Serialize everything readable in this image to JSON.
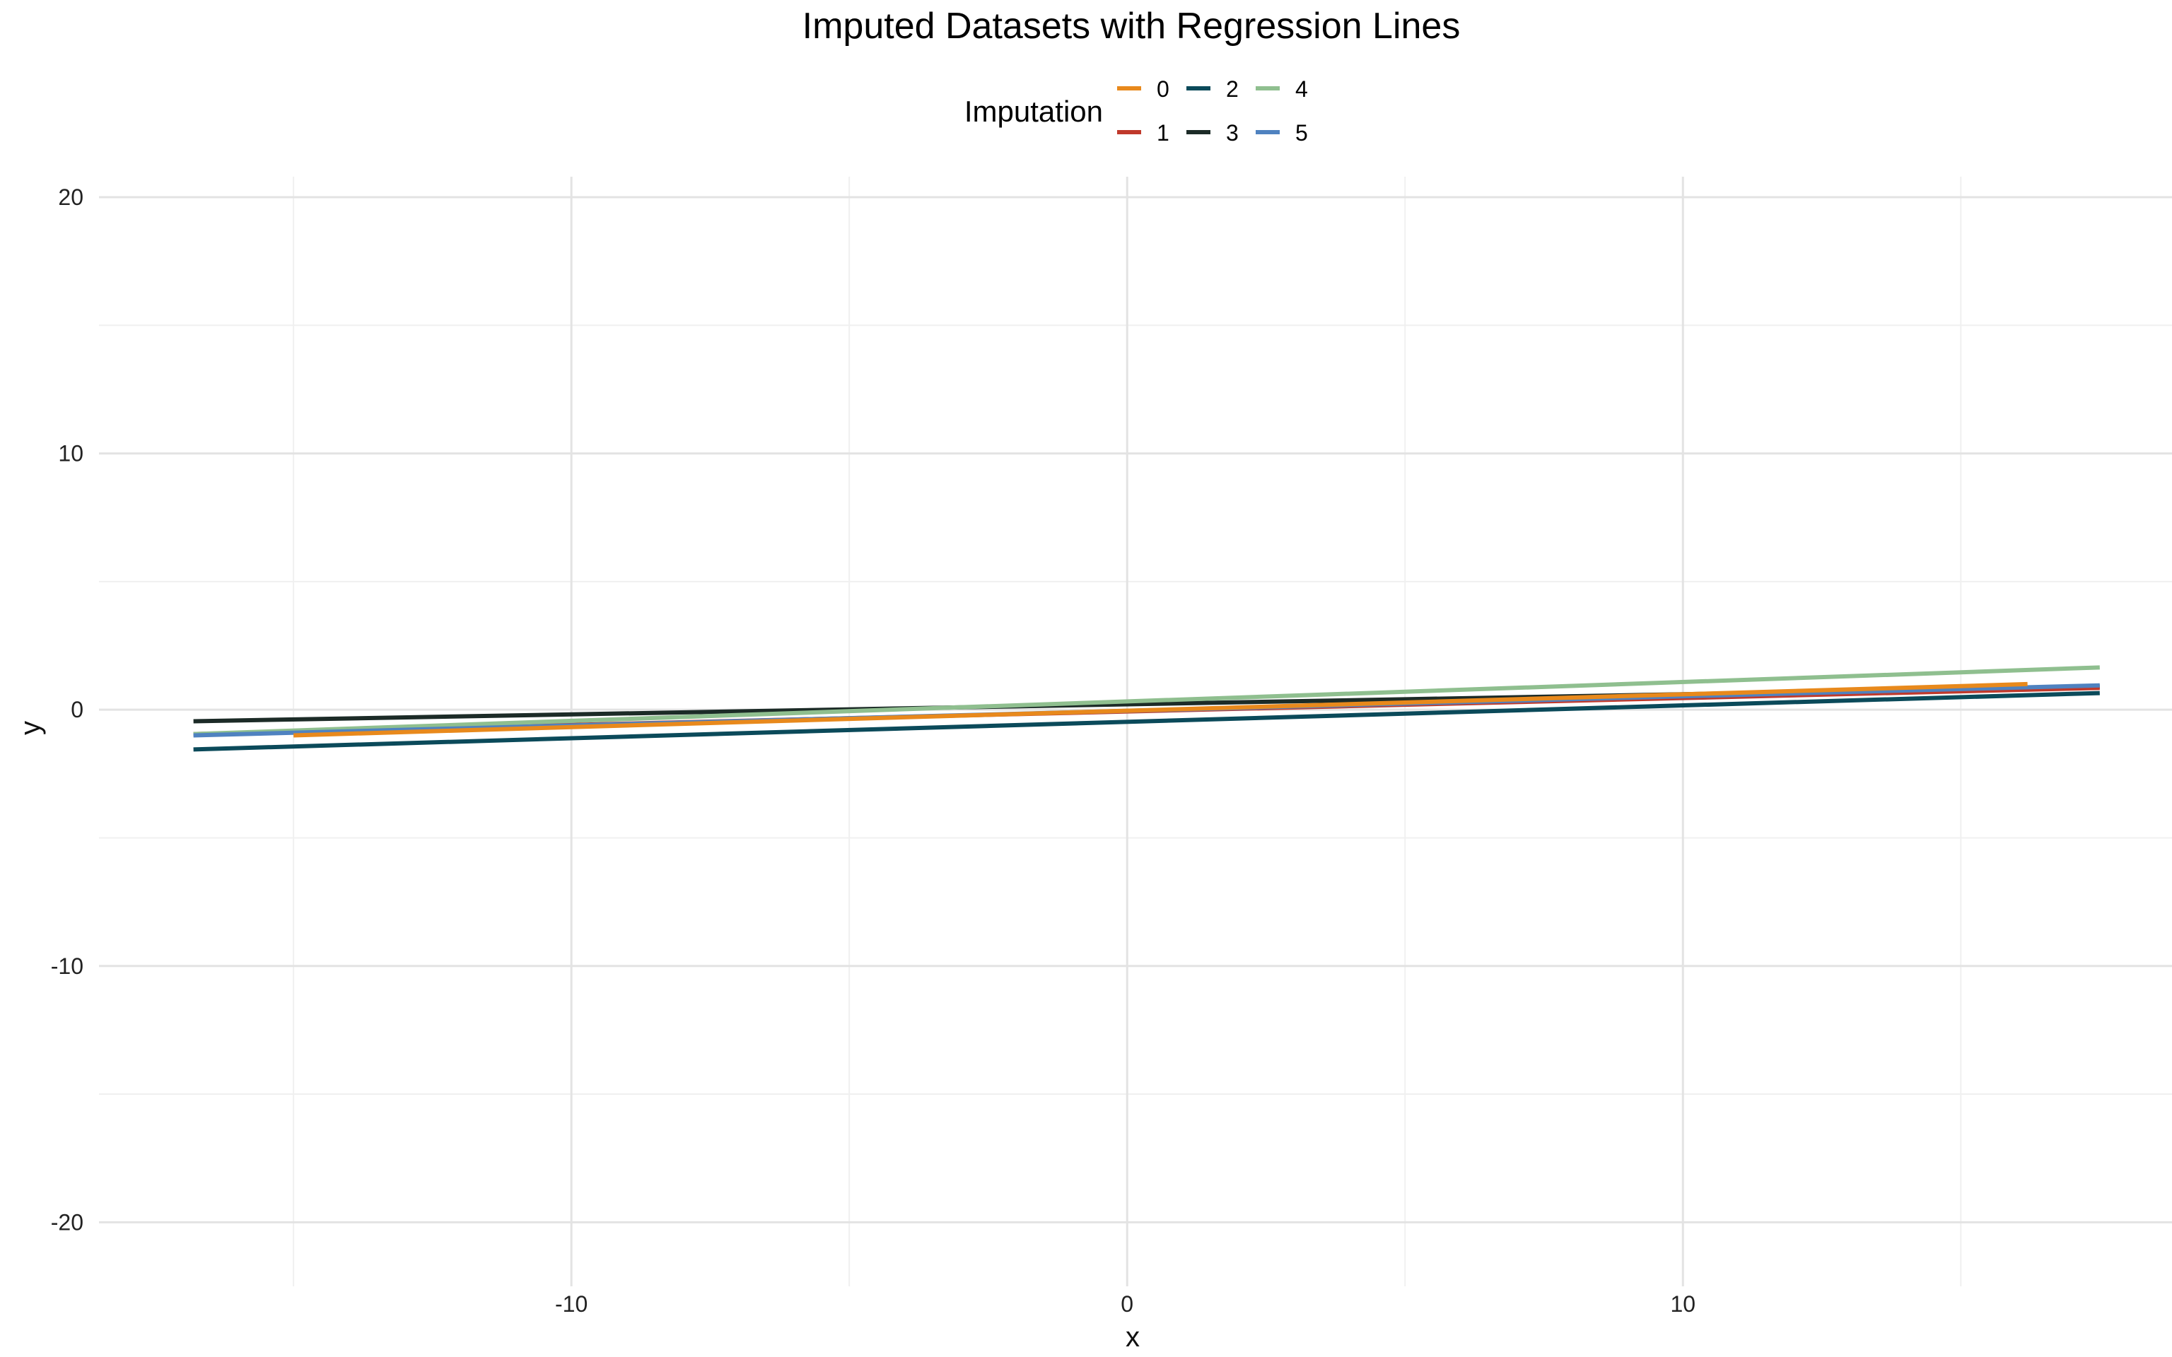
{
  "chart_data": {
    "type": "line",
    "title": "Imputed Datasets with Regression Lines",
    "xlabel": "x",
    "ylabel": "y",
    "xlim": [
      -18.5,
      18.8
    ],
    "ylim": [
      -22.5,
      20.8
    ],
    "x_ticks": [
      -10,
      0,
      10
    ],
    "x_tick_labels": [
      "-10",
      "0",
      "10"
    ],
    "y_ticks": [
      -20,
      -10,
      0,
      10,
      20
    ],
    "y_tick_labels": [
      "-20",
      "-10",
      "0",
      "10",
      "20"
    ],
    "x_minor": [
      -15,
      -5,
      5,
      15
    ],
    "y_minor": [
      -15,
      -5,
      5,
      15
    ],
    "grid": true,
    "legend": {
      "title": "Imputation",
      "placement": "top",
      "entries": [
        "0",
        "1",
        "2",
        "3",
        "4",
        "5"
      ]
    },
    "series": [
      {
        "name": "0",
        "color": "#E8891C",
        "x": [
          -15.0,
          16.2
        ],
        "y": [
          -1.0,
          1.0
        ]
      },
      {
        "name": "1",
        "color": "#C0392B",
        "x": [
          -16.8,
          17.5
        ],
        "y": [
          -0.95,
          0.85
        ]
      },
      {
        "name": "2",
        "color": "#0B4A5A",
        "x": [
          -16.8,
          17.5
        ],
        "y": [
          -1.55,
          0.65
        ]
      },
      {
        "name": "3",
        "color": "#1C2B27",
        "x": [
          -16.8,
          17.5
        ],
        "y": [
          -0.45,
          0.9
        ]
      },
      {
        "name": "4",
        "color": "#8FBF8F",
        "x": [
          -16.8,
          17.5
        ],
        "y": [
          -0.95,
          1.65
        ]
      },
      {
        "name": "5",
        "color": "#4F82C0",
        "x": [
          -16.8,
          17.5
        ],
        "y": [
          -1.0,
          0.95
        ]
      }
    ]
  }
}
